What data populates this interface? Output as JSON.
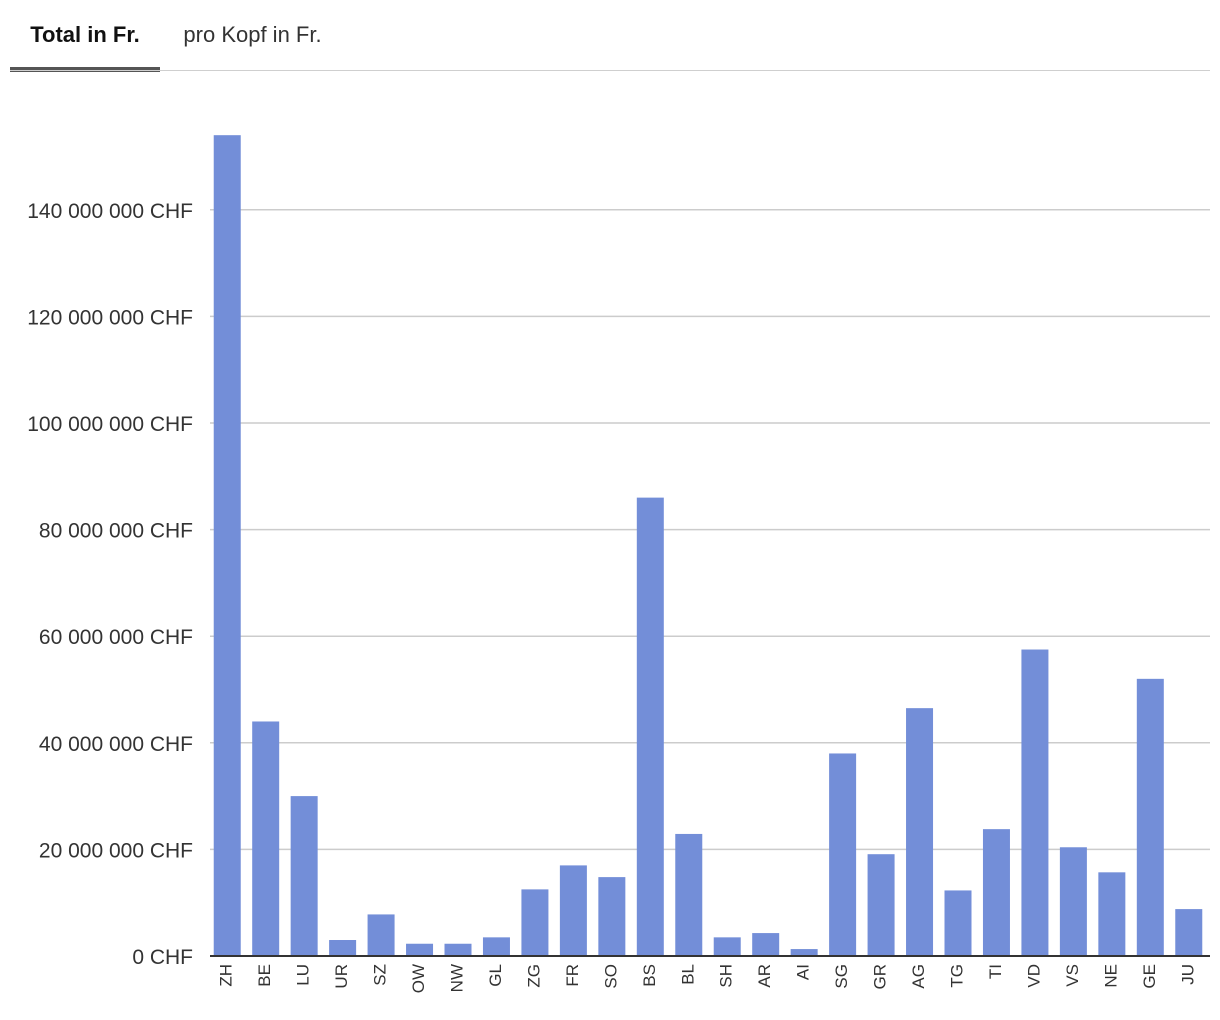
{
  "tabs": [
    {
      "label": "Total in Fr.",
      "active": true
    },
    {
      "label": "pro Kopf in Fr.",
      "active": false
    }
  ],
  "colors": {
    "bar": "#738ED8",
    "grid": "#cccccc",
    "axis": "#333333",
    "tab_underline": "#555555"
  },
  "chart_data": {
    "type": "bar",
    "categories": [
      "ZH",
      "BE",
      "LU",
      "UR",
      "SZ",
      "OW",
      "NW",
      "GL",
      "ZG",
      "FR",
      "SO",
      "BS",
      "BL",
      "SH",
      "AR",
      "AI",
      "SG",
      "GR",
      "AG",
      "TG",
      "TI",
      "VD",
      "VS",
      "NE",
      "GE",
      "JU"
    ],
    "values": [
      154000000,
      44000000,
      30000000,
      3000000,
      7800000,
      2300000,
      2300000,
      3500000,
      12500000,
      17000000,
      14800000,
      86000000,
      22900000,
      3500000,
      4300000,
      1300000,
      38000000,
      19100000,
      46500000,
      12300000,
      23800000,
      57500000,
      20400000,
      15700000,
      52000000,
      8800000
    ],
    "yticks": [
      0,
      20000000,
      40000000,
      60000000,
      80000000,
      100000000,
      120000000,
      140000000
    ],
    "ytick_labels": [
      "0 CHF",
      "20 000 000 CHF",
      "40 000 000 CHF",
      "60 000 000 CHF",
      "80 000 000 CHF",
      "100 000 000 CHF",
      "120 000 000 CHF",
      "140 000 000 CHF"
    ],
    "ylim": [
      0,
      155000000
    ],
    "grid": true,
    "legend": "none"
  }
}
